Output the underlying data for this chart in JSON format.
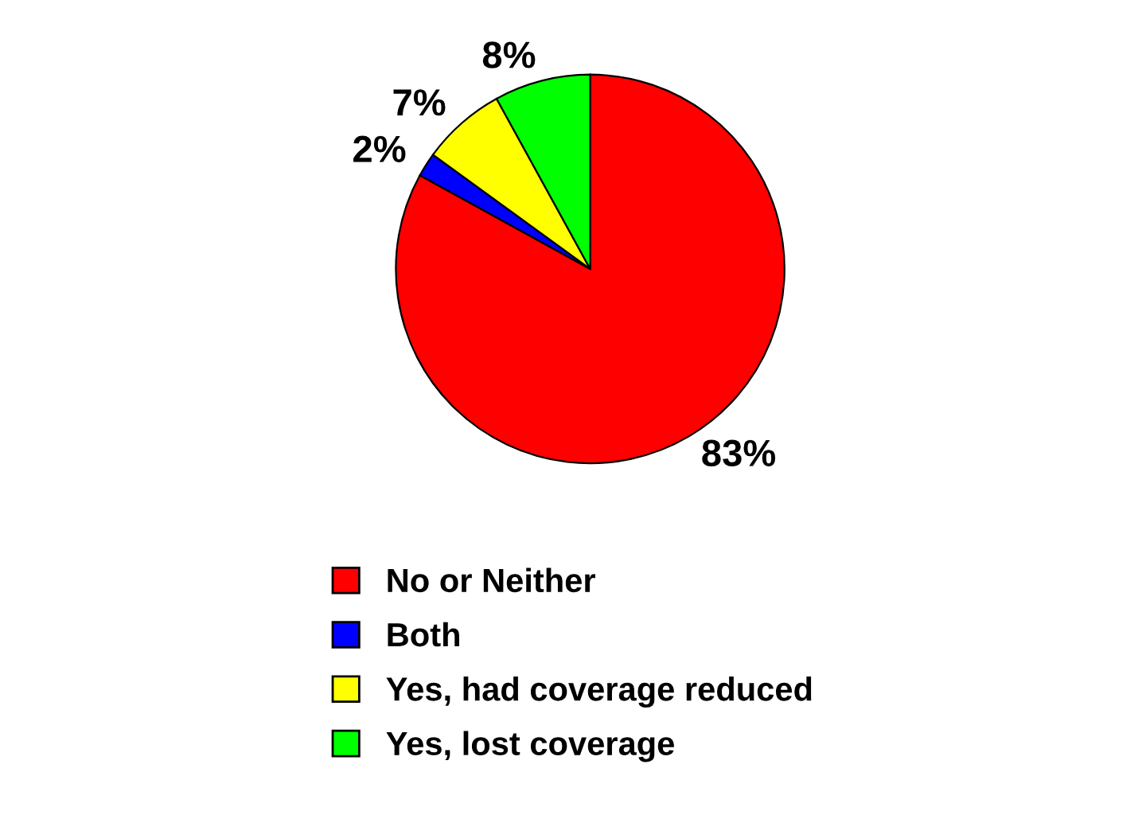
{
  "chart_data": {
    "type": "pie",
    "categories": [
      "No or Neither",
      "Both",
      "Yes, had coverage reduced",
      "Yes, lost coverage"
    ],
    "values": [
      83,
      2,
      7,
      8
    ],
    "colors": [
      "#ff0000",
      "#0000ff",
      "#ffff00",
      "#00ff00"
    ],
    "value_labels": [
      "83%",
      "2%",
      "7%",
      "8%"
    ],
    "legend": "bottom"
  }
}
